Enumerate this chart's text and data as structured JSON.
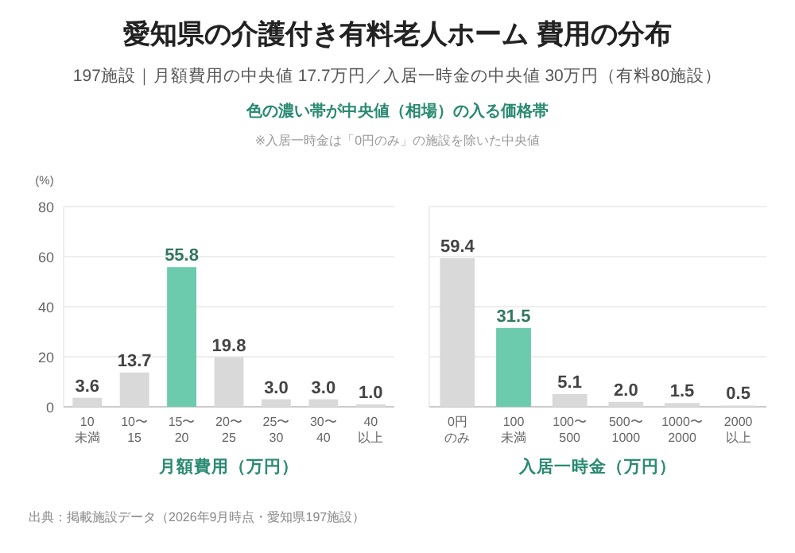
{
  "chart_data": [
    {
      "type": "bar",
      "title": "愛知県の介護付き有料老人ホーム 費用の分布",
      "subtitle": "197施設｜月額費用の中央値 17.7万円／入居一時金の中央値 30万円（有料80施設）",
      "annotations": [
        "色の濃い帯が中央値（相場）の入る価格帯",
        "※入居一時金は「0円のみ」の施設を除いた中央値",
        "出典：掲載施設データ（2026年9月時点・愛知県197施設）"
      ],
      "ylabel": "(%)",
      "xlabel": "月額費用（万円）",
      "categories": [
        "10未満",
        "10〜15",
        "15〜20",
        "20〜25",
        "25〜30",
        "30〜40",
        "40以上"
      ],
      "values": [
        3.6,
        13.7,
        55.8,
        19.8,
        3.0,
        3.0,
        1.0
      ],
      "value_labels": [
        "3.6",
        "13.7",
        "55.8",
        "19.8",
        "3.0",
        "3.0",
        "1.0"
      ],
      "colors": [
        "#d9d9d9",
        "#d9d9d9",
        "#6ccaad",
        "#d9d9d9",
        "#d9d9d9",
        "#d9d9d9",
        "#d9d9d9"
      ],
      "ylim": [
        0,
        80
      ],
      "yticks": [
        0,
        20,
        40,
        60,
        80
      ],
      "grid": "y"
    },
    {
      "type": "bar",
      "xlabel": "入居一時金（万円）",
      "categories": [
        "0円のみ",
        "100未満",
        "100〜500",
        "500〜1000",
        "1000〜2000",
        "2000以上"
      ],
      "values": [
        59.4,
        31.5,
        5.1,
        2.0,
        1.5,
        0.5
      ],
      "value_labels": [
        "59.4",
        "31.5",
        "5.1",
        "2.0",
        "1.5",
        "0.5"
      ],
      "colors": [
        "#d9d9d9",
        "#6ccaad",
        "#d9d9d9",
        "#d9d9d9",
        "#d9d9d9",
        "#d9d9d9"
      ],
      "ylim": [
        0,
        80
      ],
      "yticks": [
        {
          "value": 0,
          "label": null
        },
        {
          "value": 20,
          "label": null
        },
        {
          "value": 40,
          "label": null
        },
        {
          "value": 60,
          "label": null
        },
        {
          "value": 80,
          "label": null
        }
      ],
      "grid": "y",
      "tick_labels": "x"
    }
  ]
}
